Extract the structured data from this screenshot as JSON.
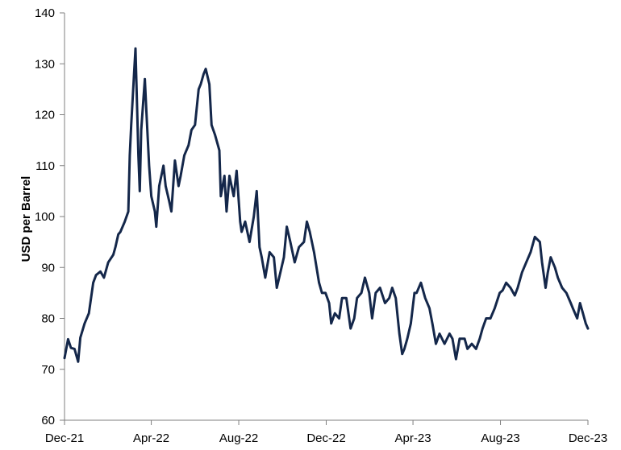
{
  "chart_data": {
    "type": "line",
    "title": "",
    "xlabel": "",
    "ylabel": "USD per Barrel",
    "ylim": [
      60,
      140
    ],
    "yticks": [
      60,
      70,
      80,
      90,
      100,
      110,
      120,
      130,
      140
    ],
    "xlim": [
      "2021-12-01",
      "2023-12-01"
    ],
    "xticks": [
      {
        "date": "2021-12-01",
        "label": "Dec-21"
      },
      {
        "date": "2022-04-01",
        "label": "Apr-22"
      },
      {
        "date": "2022-08-01",
        "label": "Aug-22"
      },
      {
        "date": "2022-12-01",
        "label": "Dec-22"
      },
      {
        "date": "2023-04-01",
        "label": "Apr-23"
      },
      {
        "date": "2023-08-01",
        "label": "Aug-23"
      },
      {
        "date": "2023-12-01",
        "label": "Dec-23"
      }
    ],
    "grid": false,
    "legend": "none",
    "line_color": "#14274a",
    "series": [
      {
        "x": [
          "2021-12-01",
          "2021-12-06",
          "2021-12-10",
          "2021-12-15",
          "2021-12-20",
          "2021-12-23",
          "2021-12-29",
          "2022-01-04",
          "2022-01-10",
          "2022-01-14",
          "2022-01-20",
          "2022-01-25",
          "2022-01-31",
          "2022-02-07",
          "2022-02-10",
          "2022-02-14",
          "2022-02-17",
          "2022-02-23",
          "2022-02-28",
          "2022-03-02",
          "2022-03-04",
          "2022-03-08",
          "2022-03-10",
          "2022-03-14",
          "2022-03-16",
          "2022-03-18",
          "2022-03-21",
          "2022-03-23",
          "2022-03-25",
          "2022-03-29",
          "2022-04-01",
          "2022-04-06",
          "2022-04-08",
          "2022-04-12",
          "2022-04-18",
          "2022-04-21",
          "2022-04-26",
          "2022-04-29",
          "2022-05-04",
          "2022-05-09",
          "2022-05-12",
          "2022-05-17",
          "2022-05-23",
          "2022-05-27",
          "2022-06-01",
          "2022-06-06",
          "2022-06-09",
          "2022-06-13",
          "2022-06-16",
          "2022-06-21",
          "2022-06-24",
          "2022-06-29",
          "2022-07-05",
          "2022-07-07",
          "2022-07-12",
          "2022-07-15",
          "2022-07-19",
          "2022-07-25",
          "2022-07-29",
          "2022-08-03",
          "2022-08-05",
          "2022-08-10",
          "2022-08-16",
          "2022-08-22",
          "2022-08-26",
          "2022-08-30",
          "2022-09-02",
          "2022-09-07",
          "2022-09-13",
          "2022-09-19",
          "2022-09-23",
          "2022-09-28",
          "2022-10-03",
          "2022-10-07",
          "2022-10-12",
          "2022-10-18",
          "2022-10-24",
          "2022-10-31",
          "2022-11-04",
          "2022-11-08",
          "2022-11-14",
          "2022-11-21",
          "2022-11-25",
          "2022-11-30",
          "2022-12-05",
          "2022-12-08",
          "2022-12-13",
          "2022-12-19",
          "2022-12-23",
          "2022-12-29",
          "2023-01-04",
          "2023-01-09",
          "2023-01-13",
          "2023-01-19",
          "2023-01-24",
          "2023-01-30",
          "2023-02-03",
          "2023-02-08",
          "2023-02-14",
          "2023-02-21",
          "2023-02-27",
          "2023-03-03",
          "2023-03-08",
          "2023-03-13",
          "2023-03-17",
          "2023-03-20",
          "2023-03-24",
          "2023-03-29",
          "2023-04-03",
          "2023-04-06",
          "2023-04-12",
          "2023-04-18",
          "2023-04-24",
          "2023-04-28",
          "2023-05-03",
          "2023-05-08",
          "2023-05-15",
          "2023-05-22",
          "2023-05-26",
          "2023-05-31",
          "2023-06-05",
          "2023-06-12",
          "2023-06-16",
          "2023-06-22",
          "2023-06-28",
          "2023-07-03",
          "2023-07-07",
          "2023-07-12",
          "2023-07-18",
          "2023-07-24",
          "2023-07-31",
          "2023-08-04",
          "2023-08-09",
          "2023-08-15",
          "2023-08-21",
          "2023-08-25",
          "2023-08-31",
          "2023-09-06",
          "2023-09-12",
          "2023-09-18",
          "2023-09-25",
          "2023-09-28",
          "2023-10-03",
          "2023-10-06",
          "2023-10-10",
          "2023-10-16",
          "2023-10-20",
          "2023-10-26",
          "2023-11-01",
          "2023-11-07",
          "2023-11-10",
          "2023-11-16",
          "2023-11-20",
          "2023-11-24",
          "2023-11-28",
          "2023-12-01"
        ],
        "values": [
          72.2,
          75.9,
          74.2,
          74.0,
          71.5,
          76.2,
          79.0,
          81.0,
          87.0,
          88.5,
          89.2,
          88.0,
          91.0,
          92.5,
          94.0,
          96.5,
          97.0,
          99.0,
          101.0,
          112.0,
          118.0,
          128.0,
          133.0,
          112.0,
          105.0,
          117.0,
          123.0,
          127.0,
          121.0,
          110.0,
          104.0,
          101.0,
          98.0,
          106.0,
          110.0,
          106.0,
          103.0,
          101.0,
          111.0,
          106.0,
          108.0,
          112.0,
          114.0,
          117.0,
          118.0,
          125.0,
          126.0,
          128.0,
          129.0,
          126.0,
          118.0,
          116.0,
          113.0,
          104.0,
          108.0,
          101.0,
          108.0,
          104.0,
          109.0,
          99.0,
          97.0,
          99.0,
          95.0,
          100.0,
          105.0,
          94.0,
          92.0,
          88.0,
          93.0,
          92.0,
          86.0,
          89.0,
          92.0,
          98.0,
          95.0,
          91.0,
          94.0,
          95.0,
          99.0,
          97.0,
          93.0,
          87.0,
          85.0,
          85.0,
          83.0,
          79.0,
          81.0,
          80.0,
          84.0,
          84.0,
          78.0,
          80.0,
          84.0,
          85.0,
          88.0,
          85.0,
          80.0,
          85.0,
          86.0,
          83.0,
          84.0,
          86.0,
          84.0,
          77.0,
          73.0,
          74.0,
          76.0,
          79.0,
          85.0,
          85.0,
          87.0,
          84.0,
          82.0,
          79.0,
          75.0,
          77.0,
          75.0,
          77.0,
          76.0,
          72.0,
          76.0,
          76.0,
          74.0,
          75.0,
          74.0,
          76.0,
          78.0,
          80.0,
          80.0,
          82.0,
          85.0,
          85.5,
          87.0,
          86.0,
          84.5,
          86.0,
          89.0,
          91.0,
          93.0,
          96.0,
          95.0,
          91.0,
          86.0,
          89.0,
          92.0,
          90.0,
          88.0,
          86.0,
          85.0,
          83.0,
          82.0,
          80.0,
          83.0,
          81.0,
          79.0,
          78.0
        ]
      }
    ]
  }
}
